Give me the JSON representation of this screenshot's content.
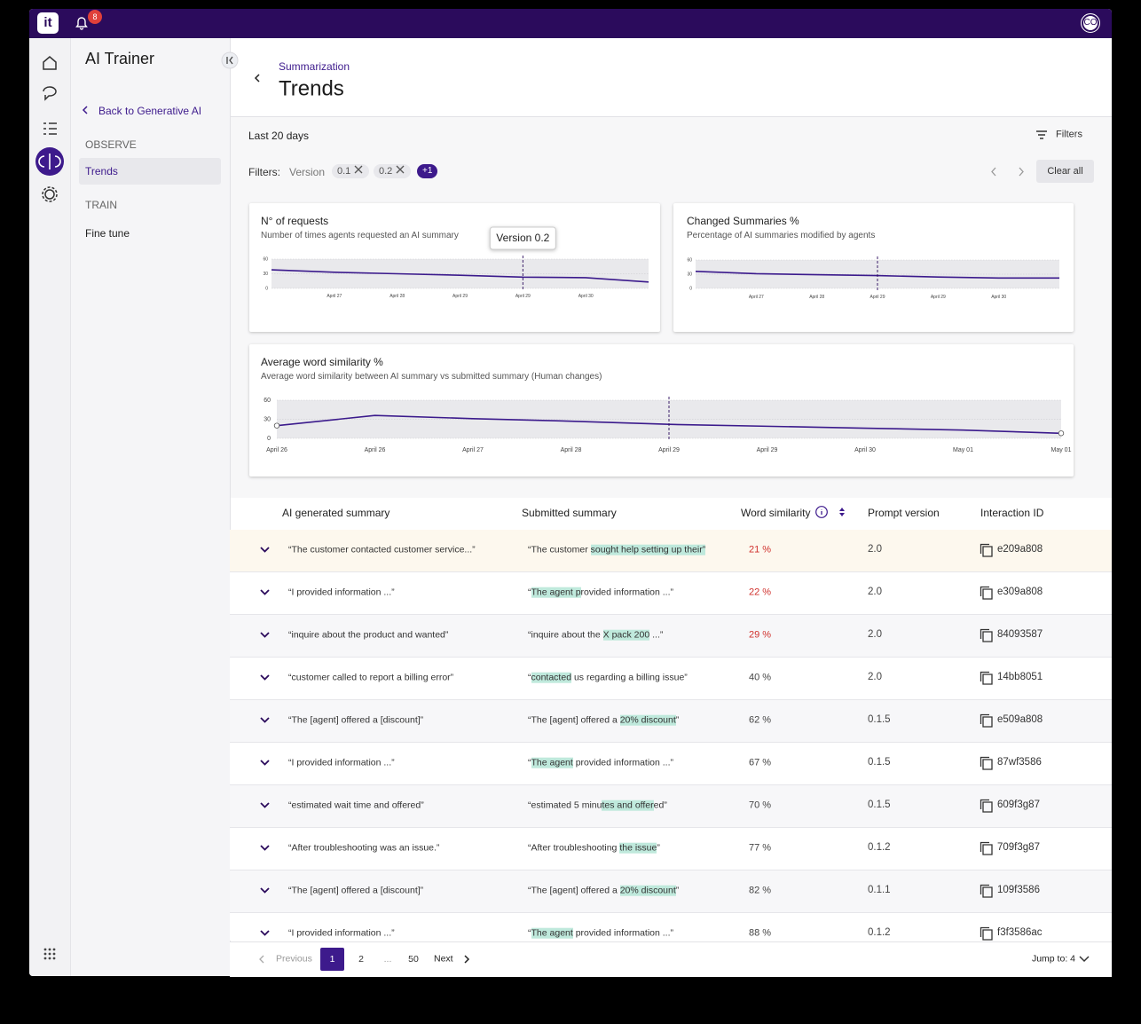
{
  "topbar": {
    "logo": "it",
    "notification_count": "8",
    "avatar": "CO"
  },
  "sidebar": {
    "title": "AI Trainer",
    "back_link": "Back to Generative AI",
    "sections": [
      {
        "heading": "OBSERVE",
        "items": [
          "Trends"
        ]
      },
      {
        "heading": "TRAIN",
        "items": [
          "Fine tune"
        ]
      }
    ]
  },
  "header": {
    "breadcrumb": "Summarization",
    "title": "Trends"
  },
  "toolbar": {
    "range": "Last 20 days",
    "filters_button": "Filters",
    "filters_label": "Filters:",
    "filter_field": "Version",
    "chips": [
      "0.1",
      "0.2"
    ],
    "more_chip": "+1",
    "clear_button": "Clear all"
  },
  "chart_data": [
    {
      "type": "line",
      "title": "N° of requests",
      "subtitle": "Number of times agents requested an AI summary",
      "tooltip": "Version 0.2",
      "marker": 4,
      "categories": [
        null,
        "April 27",
        "April 28",
        "April 29",
        "April 29",
        "April 30",
        null
      ],
      "values": [
        38,
        33,
        30,
        27,
        23,
        22,
        13
      ],
      "color": "#3b1a8c",
      "ylim": [
        0,
        60
      ],
      "yticks": [
        0,
        30,
        60
      ],
      "grid": true
    },
    {
      "type": "line",
      "title": "Changed Summaries %",
      "subtitle": "Percentage of AI summaries modified by agents",
      "marker": 3,
      "categories": [
        null,
        "April 27",
        "April 28",
        "April 29",
        "April 29",
        "April 30",
        null
      ],
      "values": [
        36,
        31,
        29,
        27,
        24,
        22,
        22
      ],
      "color": "#3b1a8c",
      "ylim": [
        0,
        60
      ],
      "yticks": [
        0,
        30,
        60
      ],
      "grid": true
    },
    {
      "type": "line",
      "title": "Average word similarity %",
      "subtitle": "Average word similarity between AI summary vs submitted summary (Human changes)",
      "marker": 4,
      "endpoint_markers": true,
      "categories": [
        "April 26",
        "April 26",
        "April 27",
        "April 28",
        "April 29",
        "April 29",
        "April 30",
        "May 01",
        "May 01"
      ],
      "values": [
        20,
        36,
        31,
        27,
        22,
        19,
        16,
        13,
        8
      ],
      "color": "#3b1a8c",
      "ylim": [
        0,
        60
      ],
      "yticks": [
        0,
        30,
        60
      ],
      "grid": true
    }
  ],
  "table": {
    "columns": [
      "AI generated summary",
      "Submitted summary",
      "Word similarity",
      "Prompt version",
      "Interaction ID"
    ],
    "rows": [
      {
        "summary": "“The customer contacted customer service...”",
        "submitted": [
          {
            "text": "“The customer "
          },
          {
            "text": "sought help setting up their”",
            "highlight": true
          }
        ],
        "similarity": "21 %",
        "alert": true,
        "version": "2.0",
        "id": "e209a808"
      },
      {
        "summary": "“I provided information ...”",
        "submitted": [
          {
            "text": "“"
          },
          {
            "text": "The agent p",
            "highlight": true
          },
          {
            "text": "rovided information ...”"
          }
        ],
        "similarity": "22 %",
        "alert": true,
        "version": "2.0",
        "id": "e309a808"
      },
      {
        "summary": "“inquire about the product and wanted”",
        "submitted": [
          {
            "text": "“inquire about the "
          },
          {
            "text": "X pack 200",
            "highlight": true
          },
          {
            "text": " ...”"
          }
        ],
        "similarity": "29 %",
        "alert": true,
        "version": "2.0",
        "id": "84093587"
      },
      {
        "summary": "“customer called to report a billing error”",
        "submitted": [
          {
            "text": "“"
          },
          {
            "text": "contacted",
            "highlight": true
          },
          {
            "text": " us regarding a billing issue”"
          }
        ],
        "similarity": "40 %",
        "version": "2.0",
        "id": "14bb8051"
      },
      {
        "summary": "“The [agent] offered a [discount]”",
        "submitted": [
          {
            "text": "“The [agent] offered a "
          },
          {
            "text": "20% discount",
            "highlight": true
          },
          {
            "text": "”"
          }
        ],
        "similarity": "62 %",
        "version": "0.1.5",
        "id": "e509a808"
      },
      {
        "summary": "“I provided information ...”",
        "submitted": [
          {
            "text": "“"
          },
          {
            "text": "The agent",
            "highlight": true
          },
          {
            "text": " provided information ...”"
          }
        ],
        "similarity": "67 %",
        "version": "0.1.5",
        "id": "87wf3586"
      },
      {
        "summary": "“estimated wait time and offered”",
        "submitted": [
          {
            "text": "“estimated 5 minu"
          },
          {
            "text": "tes and offer",
            "highlight": true
          },
          {
            "text": "ed”"
          }
        ],
        "similarity": "70 %",
        "version": "0.1.5",
        "id": "609f3g87"
      },
      {
        "summary": "“After troubleshooting was an issue.”",
        "submitted": [
          {
            "text": "“After troubleshooting "
          },
          {
            "text": "the issue",
            "highlight": true
          },
          {
            "text": "”"
          }
        ],
        "similarity": "77 %",
        "version": "0.1.2",
        "id": "709f3g87"
      },
      {
        "summary": "“The [agent] offered a [discount]”",
        "submitted": [
          {
            "text": "“The [agent] offered a "
          },
          {
            "text": "20% discount",
            "highlight": true
          },
          {
            "text": "”"
          }
        ],
        "similarity": "82 %",
        "version": "0.1.1",
        "id": "109f3586"
      },
      {
        "summary": "“I provided information ...”",
        "submitted": [
          {
            "text": "“"
          },
          {
            "text": "The agent",
            "highlight": true
          },
          {
            "text": " provided information ...”"
          }
        ],
        "similarity": "88 %",
        "version": "0.1.2",
        "id": "f3f3586ac"
      }
    ]
  },
  "pagination": {
    "previous": "Previous",
    "pages": [
      "1",
      "2",
      "...",
      "50"
    ],
    "current": "1",
    "next": "Next",
    "jump_to": "Jump to: 4"
  }
}
